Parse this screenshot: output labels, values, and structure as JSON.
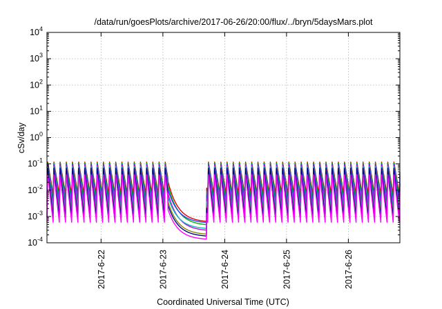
{
  "chart_data": {
    "type": "line",
    "title": "/data/run/goesPlots/archive/2017-06-26/20:00/flux/../bryn/5daysMars.plot",
    "xlabel": "Coordinated Universal Time (UTC)",
    "ylabel": "cSv/day",
    "y_scale": "log",
    "ylim": [
      0.0001,
      10000
    ],
    "xlim": [
      "2017-06-21T03:00",
      "2017-06-26T20:00"
    ],
    "x_ticks": [
      "2017-6-22",
      "2017-6-23",
      "2017-6-24",
      "2017-6-25",
      "2017-6-26"
    ],
    "y_ticks": [
      {
        "base": "10",
        "exp": "-4"
      },
      {
        "base": "10",
        "exp": "-3"
      },
      {
        "base": "10",
        "exp": "-2"
      },
      {
        "base": "10",
        "exp": "-1"
      },
      {
        "base": "10",
        "exp": "0"
      },
      {
        "base": "10",
        "exp": "1"
      },
      {
        "base": "10",
        "exp": "2"
      },
      {
        "base": "10",
        "exp": "3"
      },
      {
        "base": "10",
        "exp": "4"
      }
    ],
    "grid": true,
    "legend": "none",
    "sawtooth_cycles_per_day": 10,
    "low_period": {
      "start": "2017-06-23T02:00",
      "end": "2017-06-23T17:00"
    },
    "series": [
      {
        "color": "#e00000",
        "peak": 0.12,
        "trough": 0.007,
        "plateau": 0.0006
      },
      {
        "color": "#00b000",
        "peak": 0.11,
        "trough": 0.005,
        "plateau": 0.00045
      },
      {
        "color": "#2244ff",
        "peak": 0.1,
        "trough": 0.0035,
        "plateau": 0.00055
      },
      {
        "color": "#d000d0",
        "peak": 0.09,
        "trough": 0.0025,
        "plateau": 0.00028
      },
      {
        "color": "#00c0c0",
        "peak": 0.08,
        "trough": 0.0018,
        "plateau": 0.00033
      },
      {
        "color": "#888800",
        "peak": 0.06,
        "trough": 0.0012,
        "plateau": 0.0002
      },
      {
        "color": "#000090",
        "peak": 0.07,
        "trough": 0.0009,
        "plateau": 0.00017
      },
      {
        "color": "#ff00ff",
        "peak": 0.04,
        "trough": 0.0006,
        "plateau": 0.00013
      }
    ]
  }
}
